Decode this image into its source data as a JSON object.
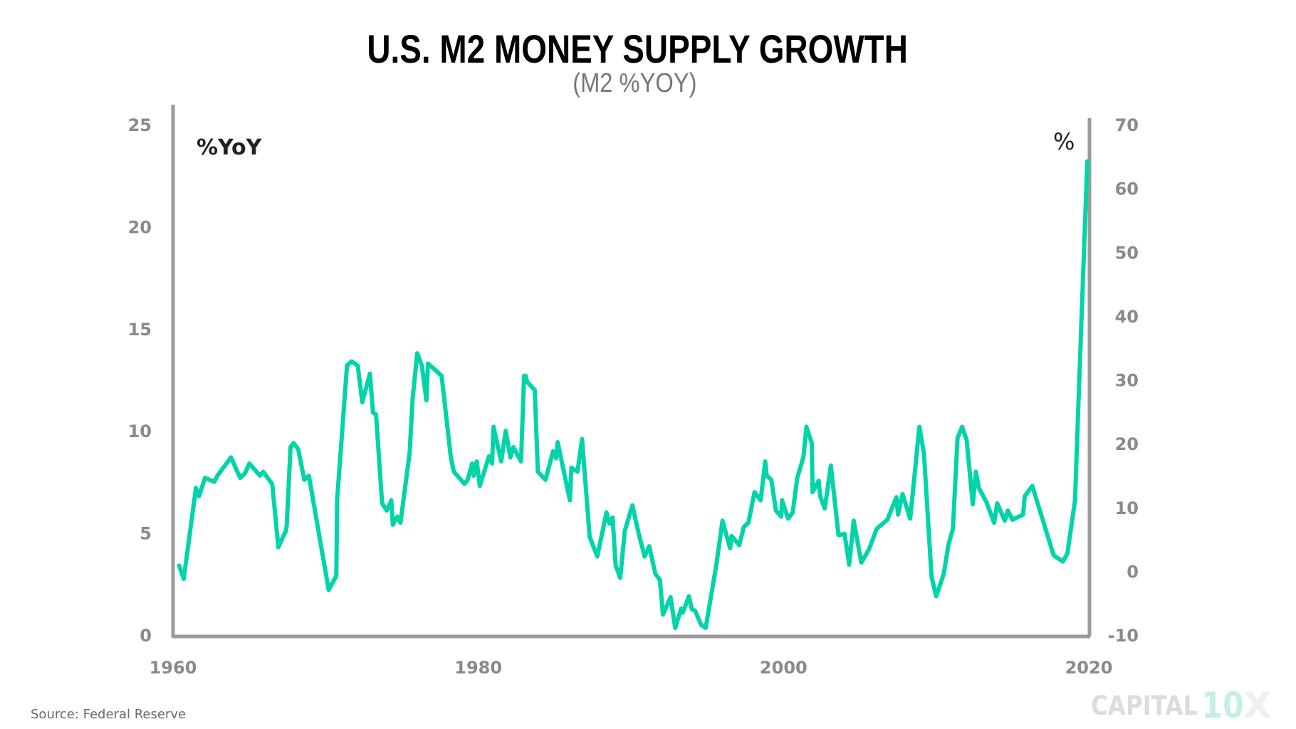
{
  "colors": {
    "line": "#00d4a8",
    "axis": "#9a9a9a",
    "tick_label": "#8a8a8a",
    "logo_gray": "#dcdcdc",
    "logo_teal": "#c4efe4",
    "logo_light": "#efefef"
  },
  "footer": {
    "source": "Source: Federal Reserve",
    "logo": "CAPITAL10X"
  },
  "chart_data": {
    "type": "line",
    "title": "U.S. M2 MONEY SUPPLY GROWTH",
    "subtitle": "(M2 %YOY)",
    "left_axis_label": "%YoY",
    "right_axis_label": "%",
    "xlabel": "",
    "ylabel": "%YoY",
    "xlim": [
      1960,
      2020
    ],
    "ylim": [
      0,
      25
    ],
    "y2lim": [
      -10,
      70
    ],
    "grid": false,
    "x_ticks": [
      "1960",
      "1980",
      "2000",
      "2020"
    ],
    "x_tick_values": [
      1960,
      1980,
      2000,
      2020
    ],
    "y_ticks": [
      "0",
      "5",
      "10",
      "15",
      "20",
      "25"
    ],
    "y_tick_values": [
      0,
      5,
      10,
      15,
      20,
      25
    ],
    "y2_ticks": [
      "-10",
      "0",
      "10",
      "20",
      "30",
      "40",
      "50",
      "60",
      "70"
    ],
    "y2_tick_values": [
      -10,
      0,
      10,
      20,
      30,
      40,
      50,
      60,
      70
    ],
    "series": [
      {
        "name": "M2 %YoY",
        "x": [
          1960.4,
          1960.7,
          1961.5,
          1961.7,
          1962.1,
          1962.7,
          1962.9,
          1963.4,
          1963.8,
          1964.4,
          1964.7,
          1965.0,
          1965.7,
          1965.9,
          1966.5,
          1966.9,
          1967.2,
          1967.4,
          1967.45,
          1967.7,
          1967.9,
          1968.2,
          1968.6,
          1968.9,
          1970.2,
          1970.7,
          1970.75,
          1971.4,
          1971.7,
          1972.1,
          1972.4,
          1972.9,
          1973.1,
          1973.3,
          1973.7,
          1974.0,
          1974.3,
          1974.4,
          1974.7,
          1974.9,
          1975.5,
          1975.7,
          1976.0,
          1976.3,
          1976.6,
          1976.7,
          1977.6,
          1978.2,
          1978.4,
          1979.1,
          1979.3,
          1979.6,
          1979.7,
          1979.9,
          1980.1,
          1980.7,
          1980.9,
          1981.0,
          1981.5,
          1981.8,
          1982.1,
          1982.3,
          1982.8,
          1983.0,
          1983.1,
          1983.2,
          1983.7,
          1983.9,
          1984.4,
          1984.9,
          1985.1,
          1985.2,
          1986.0,
          1986.1,
          1986.5,
          1986.8,
          1987.3,
          1987.8,
          1988.4,
          1988.6,
          1988.8,
          1989.0,
          1989.3,
          1989.6,
          1990.1,
          1990.5,
          1990.9,
          1991.2,
          1991.6,
          1991.9,
          1992.1,
          1992.6,
          1992.9,
          1993.3,
          1993.4,
          1993.8,
          1994.0,
          1994.2,
          1994.6,
          1994.9,
          1995.6,
          1996.0,
          1996.5,
          1996.6,
          1997.1,
          1997.4,
          1997.7,
          1998.1,
          1998.5,
          1998.8,
          1998.9,
          1999.2,
          1999.5,
          1999.85,
          1999.9,
          2000.3,
          2000.6,
          2000.9,
          2001.3,
          2001.5,
          2001.85,
          2001.9,
          2002.3,
          2002.4,
          2002.7,
          2003.1,
          2003.6,
          2004.0,
          2004.3,
          2004.6,
          2005.1,
          2005.6,
          2006.1,
          2006.8,
          2007.4,
          2007.5,
          2007.8,
          2008.3,
          2008.9,
          2009.2,
          2009.7,
          2010.0,
          2010.5,
          2010.8,
          2011.1,
          2011.4,
          2011.7,
          2012.0,
          2012.4,
          2012.6,
          2012.8,
          2013.3,
          2013.8,
          2014.0,
          2014.5,
          2014.7,
          2015.0,
          2015.7,
          2015.8,
          2016.3,
          2017.7,
          2018.3,
          2018.6,
          2019.1,
          2019.3,
          2019.9
        ],
        "y": [
          3.4,
          2.75,
          7.2,
          6.8,
          7.7,
          7.5,
          7.8,
          8.3,
          8.7,
          7.7,
          7.9,
          8.4,
          7.8,
          8.0,
          7.4,
          4.3,
          4.8,
          5.1,
          5.4,
          9.2,
          9.4,
          9.1,
          7.6,
          7.8,
          2.2,
          2.9,
          6.6,
          13.2,
          13.4,
          13.2,
          11.4,
          12.8,
          10.9,
          10.8,
          6.45,
          6.1,
          6.6,
          5.4,
          5.8,
          5.5,
          8.9,
          11.6,
          13.8,
          13.2,
          11.5,
          13.3,
          12.7,
          8.7,
          8.0,
          7.4,
          7.6,
          8.4,
          7.8,
          8.5,
          7.3,
          8.75,
          8.4,
          10.2,
          8.5,
          10.0,
          8.7,
          9.2,
          8.5,
          12.7,
          12.7,
          12.4,
          12.0,
          8.0,
          7.6,
          9.0,
          8.65,
          9.45,
          6.6,
          8.2,
          8.0,
          9.6,
          4.8,
          3.85,
          6.0,
          5.45,
          5.75,
          3.4,
          2.8,
          5.1,
          6.35,
          5.0,
          3.85,
          4.35,
          3.0,
          2.7,
          1.0,
          1.85,
          0.35,
          1.3,
          1.1,
          1.9,
          1.25,
          1.2,
          0.5,
          0.35,
          3.45,
          5.6,
          4.25,
          4.85,
          4.4,
          5.3,
          5.5,
          7.0,
          6.6,
          8.5,
          7.8,
          7.6,
          6.1,
          5.8,
          6.6,
          5.7,
          6.0,
          7.7,
          8.7,
          10.2,
          9.4,
          7.0,
          7.55,
          6.8,
          6.2,
          8.3,
          4.9,
          4.95,
          3.45,
          5.6,
          3.55,
          4.2,
          5.2,
          5.65,
          6.75,
          5.9,
          6.9,
          5.7,
          10.2,
          8.9,
          2.85,
          1.9,
          3.0,
          4.4,
          5.2,
          9.65,
          10.2,
          9.55,
          6.4,
          8.0,
          7.2,
          6.5,
          5.5,
          6.45,
          5.6,
          6.1,
          5.65,
          5.9,
          6.8,
          7.3,
          3.9,
          3.6,
          4.0,
          6.6,
          10.9,
          23.2
        ]
      }
    ]
  }
}
